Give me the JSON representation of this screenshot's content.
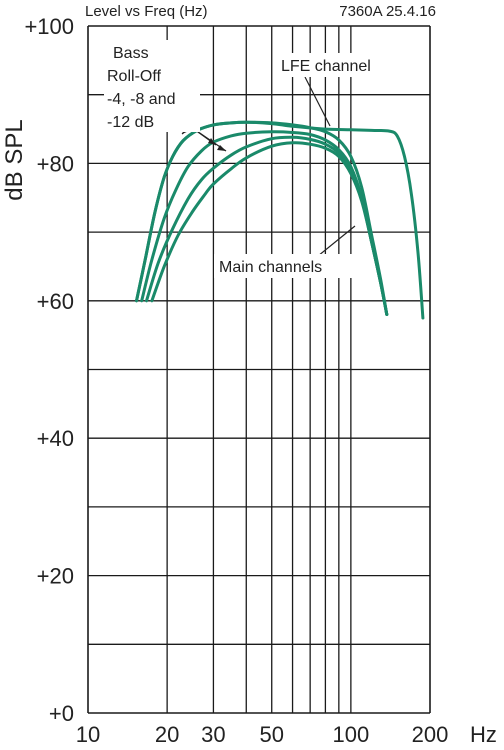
{
  "chart_data": {
    "type": "line",
    "title": "Level vs Freq (Hz)",
    "subtitle": "7360A 25.4.16",
    "xlabel": "Hz",
    "ylabel": "dB SPL",
    "x_scale": "log",
    "xlim": [
      10,
      200
    ],
    "ylim": [
      0,
      100
    ],
    "x_ticks": [
      {
        "value": 10,
        "label": "10"
      },
      {
        "value": 20,
        "label": "20"
      },
      {
        "value": 30,
        "label": "30"
      },
      {
        "value": 50,
        "label": "50"
      },
      {
        "value": 100,
        "label": "100"
      },
      {
        "value": 200,
        "label": "200"
      }
    ],
    "y_ticks": [
      {
        "value": 0,
        "label": "+0"
      },
      {
        "value": 20,
        "label": "+20"
      },
      {
        "value": 40,
        "label": "+40"
      },
      {
        "value": 60,
        "label": "+60"
      },
      {
        "value": 80,
        "label": "+80"
      },
      {
        "value": 100,
        "label": "+100"
      }
    ],
    "grid": true,
    "line_color": "#1a8a6a",
    "series": [
      {
        "name": "",
        "points": [
          [
            15.3,
            60
          ],
          [
            16.5,
            66
          ],
          [
            18.0,
            73
          ],
          [
            19.5,
            78
          ],
          [
            21.0,
            81
          ],
          [
            23,
            83.3
          ],
          [
            26,
            84.8
          ],
          [
            30,
            85.6
          ],
          [
            35,
            85.9
          ],
          [
            40,
            86.0
          ],
          [
            50,
            85.9
          ],
          [
            60,
            85.6
          ],
          [
            70,
            85.2
          ],
          [
            80,
            84.6
          ],
          [
            90,
            83.4
          ],
          [
            100,
            81.0
          ],
          [
            110,
            76.5
          ],
          [
            120,
            69.5
          ],
          [
            130,
            63.0
          ],
          [
            137,
            58.0
          ]
        ]
      },
      {
        "name": "",
        "points": [
          [
            16.0,
            60
          ],
          [
            17.5,
            66
          ],
          [
            19.5,
            72
          ],
          [
            21.5,
            76
          ],
          [
            24,
            79.5
          ],
          [
            27,
            81.8
          ],
          [
            30,
            83.1
          ],
          [
            35,
            84.0
          ],
          [
            40,
            84.4
          ],
          [
            50,
            84.6
          ],
          [
            60,
            84.5
          ],
          [
            70,
            84.2
          ],
          [
            80,
            83.4
          ],
          [
            90,
            82.0
          ],
          [
            100,
            79.5
          ],
          [
            110,
            75.0
          ],
          [
            120,
            68.5
          ],
          [
            130,
            62.5
          ],
          [
            137,
            58.0
          ]
        ]
      },
      {
        "name": "",
        "points": [
          [
            16.7,
            60
          ],
          [
            18.5,
            65.5
          ],
          [
            21,
            70.5
          ],
          [
            24,
            74.8
          ],
          [
            27,
            77.6
          ],
          [
            30,
            79.3
          ],
          [
            35,
            81.2
          ],
          [
            40,
            82.4
          ],
          [
            50,
            83.6
          ],
          [
            60,
            83.8
          ],
          [
            70,
            83.5
          ],
          [
            80,
            82.8
          ],
          [
            90,
            81.5
          ],
          [
            100,
            79.0
          ],
          [
            110,
            74.8
          ],
          [
            120,
            68.5
          ],
          [
            130,
            62.5
          ],
          [
            137,
            58.0
          ]
        ]
      },
      {
        "name": "",
        "points": [
          [
            17.5,
            60
          ],
          [
            19.5,
            65
          ],
          [
            22,
            69.5
          ],
          [
            25,
            73
          ],
          [
            28,
            75.6
          ],
          [
            30,
            77.0
          ],
          [
            35,
            79.2
          ],
          [
            40,
            80.8
          ],
          [
            50,
            82.5
          ],
          [
            60,
            83.0
          ],
          [
            70,
            82.8
          ],
          [
            80,
            82.2
          ],
          [
            90,
            81.0
          ],
          [
            100,
            78.5
          ],
          [
            110,
            74.5
          ],
          [
            120,
            68.5
          ],
          [
            130,
            62.5
          ],
          [
            137,
            58.0
          ]
        ]
      },
      {
        "name": "LFE channel",
        "points": [
          [
            15.3,
            60
          ],
          [
            16.5,
            66
          ],
          [
            18.0,
            73
          ],
          [
            19.5,
            78
          ],
          [
            21.0,
            81
          ],
          [
            23,
            83.3
          ],
          [
            26,
            84.8
          ],
          [
            30,
            85.6
          ],
          [
            35,
            85.9
          ],
          [
            40,
            86.0
          ],
          [
            50,
            85.8
          ],
          [
            60,
            85.4
          ],
          [
            80,
            85.0
          ],
          [
            100,
            84.9
          ],
          [
            120,
            84.8
          ],
          [
            140,
            84.7
          ],
          [
            150,
            84.0
          ],
          [
            160,
            81.0
          ],
          [
            170,
            75.5
          ],
          [
            180,
            67.0
          ],
          [
            188,
            57.5
          ]
        ]
      }
    ],
    "annotations": [
      {
        "lines": [
          "Bass",
          "Roll-Off",
          "-4, -8 and",
          "-12 dB"
        ]
      },
      {
        "lines": [
          "LFE channel"
        ]
      },
      {
        "lines": [
          "Main channels"
        ]
      }
    ]
  }
}
